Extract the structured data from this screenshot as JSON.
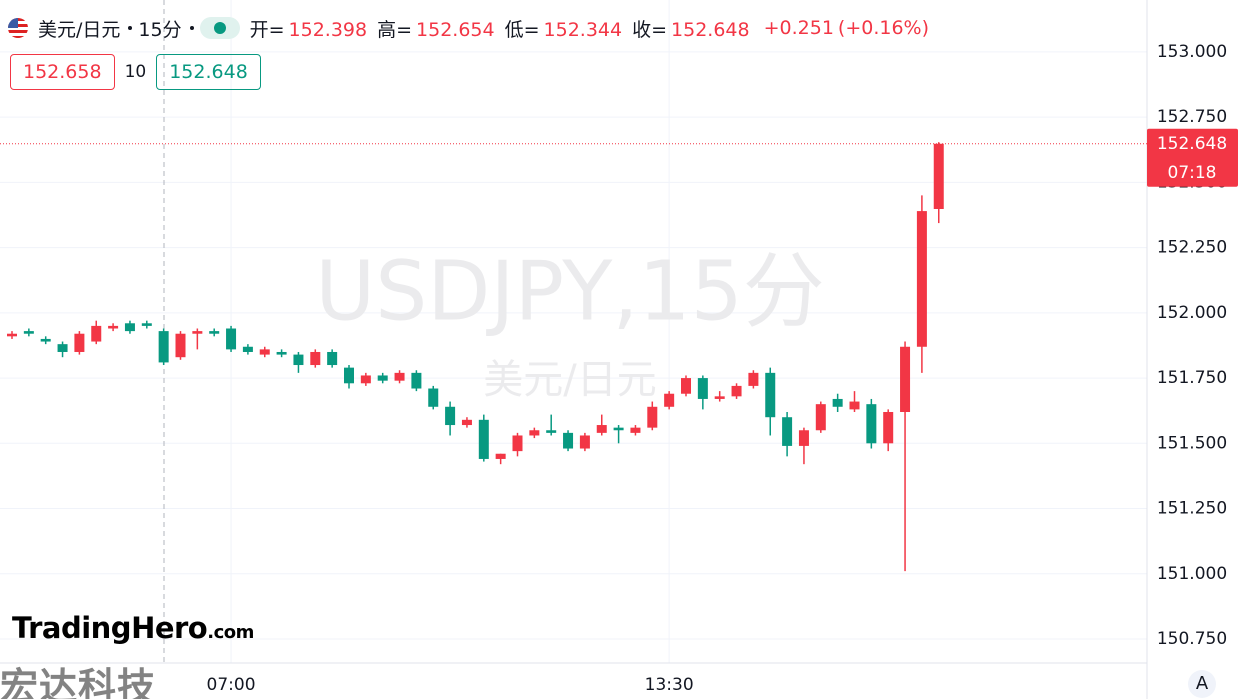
{
  "header": {
    "symbol": "美元/日元",
    "interval": "15分",
    "ohlc": [
      {
        "label": "开=",
        "value": "152.398"
      },
      {
        "label": "高=",
        "value": "152.654"
      },
      {
        "label": "低=",
        "value": "152.344"
      },
      {
        "label": "收=",
        "value": "152.648"
      }
    ],
    "change": "+0.251",
    "change_pct": "(+0.16%)"
  },
  "buttons": {
    "sell": "152.658",
    "spread": "10",
    "buy": "152.648"
  },
  "logo": {
    "name": "TradingHero",
    "suffix": ".com"
  },
  "brand": "宏达科技",
  "auto_button": "A",
  "chart_data": {
    "type": "candlestick",
    "watermark": "USDJPY,15分",
    "watermark_sub": "美元/日元",
    "categories": [
      null,
      null,
      null,
      null,
      null,
      null,
      null,
      null,
      null,
      null,
      null,
      null,
      null,
      "07:00",
      null,
      null,
      null,
      null,
      null,
      null,
      null,
      null,
      null,
      null,
      null,
      null,
      null,
      null,
      null,
      null,
      null,
      null,
      null,
      null,
      null,
      null,
      null,
      null,
      null,
      "13:30",
      null,
      null,
      null,
      null,
      null,
      null,
      null,
      null,
      null,
      null,
      null,
      null,
      null,
      null,
      null,
      null
    ],
    "open": [
      151.91,
      151.93,
      151.9,
      151.88,
      151.85,
      151.89,
      151.94,
      151.96,
      151.96,
      151.93,
      151.83,
      151.92,
      151.93,
      151.94,
      151.87,
      151.84,
      151.85,
      151.84,
      151.8,
      151.85,
      151.79,
      151.73,
      151.76,
      151.74,
      151.77,
      151.71,
      151.64,
      151.57,
      151.59,
      151.44,
      151.47,
      151.53,
      151.55,
      151.54,
      151.48,
      151.54,
      151.56,
      151.54,
      151.56,
      151.64,
      151.69,
      151.75,
      151.67,
      151.68,
      151.72,
      151.77,
      151.6,
      151.49,
      151.55,
      151.67,
      151.63,
      151.65,
      151.5,
      151.62,
      151.87,
      152.398
    ],
    "high": [
      151.93,
      151.94,
      151.91,
      151.89,
      151.93,
      151.97,
      151.96,
      151.97,
      151.97,
      151.94,
      151.93,
      151.94,
      151.94,
      151.95,
      151.88,
      151.87,
      151.86,
      151.85,
      151.86,
      151.86,
      151.8,
      151.77,
      151.77,
      151.78,
      151.78,
      151.72,
      151.66,
      151.6,
      151.61,
      151.46,
      151.54,
      151.56,
      151.61,
      151.55,
      151.54,
      151.61,
      151.57,
      151.57,
      151.66,
      151.7,
      151.76,
      151.76,
      151.7,
      151.73,
      151.78,
      151.79,
      151.62,
      151.56,
      151.66,
      151.69,
      151.7,
      151.67,
      151.63,
      151.89,
      152.45,
      152.654
    ],
    "low": [
      151.9,
      151.91,
      151.88,
      151.83,
      151.84,
      151.88,
      151.93,
      151.92,
      151.94,
      151.8,
      151.82,
      151.86,
      151.91,
      151.85,
      151.84,
      151.83,
      151.83,
      151.77,
      151.79,
      151.79,
      151.71,
      151.72,
      151.73,
      151.73,
      151.7,
      151.63,
      151.53,
      151.56,
      151.43,
      151.42,
      151.45,
      151.52,
      151.53,
      151.47,
      151.47,
      151.53,
      151.5,
      151.53,
      151.55,
      151.63,
      151.68,
      151.63,
      151.66,
      151.67,
      151.71,
      151.53,
      151.45,
      151.42,
      151.54,
      151.62,
      151.62,
      151.48,
      151.47,
      151.01,
      151.77,
      152.344
    ],
    "close": [
      151.92,
      151.92,
      151.89,
      151.85,
      151.92,
      151.95,
      151.95,
      151.93,
      151.95,
      151.81,
      151.92,
      151.93,
      151.92,
      151.86,
      151.85,
      151.86,
      151.84,
      151.8,
      151.85,
      151.8,
      151.73,
      151.76,
      151.74,
      151.77,
      151.71,
      151.64,
      151.57,
      151.59,
      151.44,
      151.46,
      151.53,
      151.55,
      151.54,
      151.48,
      151.53,
      151.57,
      151.55,
      151.56,
      151.64,
      151.69,
      151.75,
      151.67,
      151.68,
      151.72,
      151.77,
      151.6,
      151.49,
      151.55,
      151.65,
      151.64,
      151.66,
      151.5,
      151.62,
      151.87,
      152.39,
      152.648
    ],
    "up_color": "#f23645",
    "down_color": "#089981",
    "ylim": [
      150.658,
      153.199
    ],
    "yticks": [
      {
        "value": 150.75,
        "label": "150.750"
      },
      {
        "value": 151,
        "label": "151.000"
      },
      {
        "value": 151.25,
        "label": "151.250"
      },
      {
        "value": 151.5,
        "label": "151.500"
      },
      {
        "value": 151.75,
        "label": "151.750"
      },
      {
        "value": 152,
        "label": "152.000"
      },
      {
        "value": 152.25,
        "label": "152.250"
      },
      {
        "value": 152.5,
        "label": "152.500"
      },
      {
        "value": 152.75,
        "label": "152.750"
      },
      {
        "value": 153,
        "label": "153.000"
      }
    ],
    "grid": true,
    "last_price": {
      "value": 152.648,
      "label": "152.648"
    },
    "countdown": "07:18"
  }
}
